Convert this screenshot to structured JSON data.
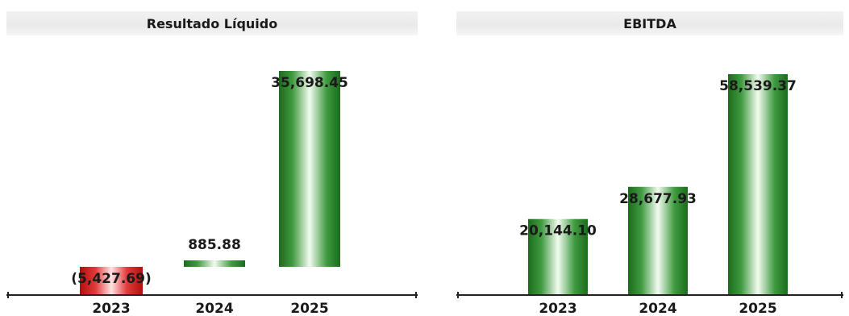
{
  "colors": {
    "positive_bar": "#2e8b2e",
    "negative_bar": "#d11a1a",
    "baseline": "#222222"
  },
  "chart_data": [
    {
      "type": "bar",
      "title": "Resultado Líquido",
      "categories": [
        "2023",
        "2024",
        "2025"
      ],
      "values": [
        -5427.69,
        885.88,
        35698.45
      ],
      "value_labels": [
        "(5,427.69)",
        "885.88",
        "35,698.45"
      ],
      "ylim": [
        -6000,
        36000
      ],
      "grid": false,
      "legend": "none"
    },
    {
      "type": "bar",
      "title": "EBITDA",
      "categories": [
        "2023",
        "2024",
        "2025"
      ],
      "values": [
        20144.1,
        28677.93,
        58539.37
      ],
      "value_labels": [
        "20,144.10",
        "28,677.93",
        "58,539.37"
      ],
      "ylim": [
        0,
        58539.37
      ],
      "grid": false,
      "legend": "none"
    }
  ]
}
